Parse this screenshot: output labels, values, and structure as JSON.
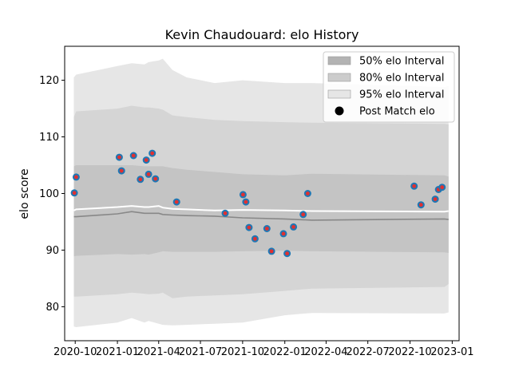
{
  "chart_data": {
    "type": "area",
    "title": "Kevin Chaudouard: elo History",
    "xlabel": "",
    "ylabel": "elo score",
    "xlim": [
      "2020-09-08",
      "2023-01-16"
    ],
    "ylim": [
      74.0,
      126.0
    ],
    "x_ticks": [
      "2020-10",
      "2021-01",
      "2021-04",
      "2021-07",
      "2021-10",
      "2022-01",
      "2022-04",
      "2022-07",
      "2022-10",
      "2023-01"
    ],
    "y_ticks": [
      80,
      90,
      100,
      110,
      120
    ],
    "grid": false,
    "legend_position": "top-right",
    "legend": [
      {
        "label": "50% elo Interval",
        "kind": "patch",
        "color": "#b3b3b3"
      },
      {
        "label": "80% elo Interval",
        "kind": "patch",
        "color": "#cccccc"
      },
      {
        "label": "95% elo Interval",
        "kind": "patch",
        "color": "#e6e6e6"
      },
      {
        "label": "Post Match elo",
        "kind": "marker",
        "color": "#000000"
      }
    ],
    "band_dates": [
      "2020-09-28",
      "2020-10-03",
      "2021-01-01",
      "2021-02-01",
      "2021-03-01",
      "2021-03-10",
      "2021-04-01",
      "2021-04-10",
      "2021-05-01",
      "2021-06-01",
      "2021-08-01",
      "2021-10-01",
      "2022-01-01",
      "2022-03-01",
      "2022-12-15",
      "2022-12-24"
    ],
    "mean_line": [
      95.9,
      95.9,
      96.4,
      96.8,
      96.5,
      96.5,
      96.5,
      96.3,
      96.2,
      96.1,
      96.0,
      95.7,
      95.5,
      95.3,
      95.5,
      95.4
    ],
    "upper_line": [
      97.0,
      97.2,
      97.6,
      97.8,
      97.6,
      97.6,
      97.8,
      97.5,
      97.3,
      97.2,
      97.0,
      97.1,
      97.0,
      96.9,
      96.8,
      96.9
    ],
    "bands": [
      {
        "name": "95% elo Interval",
        "color": "#e6e6e6",
        "upper": [
          120.5,
          121.0,
          122.5,
          123.0,
          122.8,
          123.2,
          123.5,
          123.8,
          121.8,
          120.5,
          119.5,
          120.0,
          119.5,
          119.5,
          118.8,
          119.0
        ],
        "lower": [
          76.5,
          76.4,
          77.2,
          78.0,
          77.2,
          77.5,
          77.0,
          76.8,
          76.7,
          76.8,
          77.0,
          77.2,
          78.5,
          78.9,
          78.8,
          79.0
        ]
      },
      {
        "name": "80% elo Interval",
        "color": "#d5d5d5",
        "upper": [
          113.5,
          114.5,
          115.0,
          115.5,
          115.2,
          115.2,
          115.0,
          114.8,
          113.8,
          113.5,
          113.0,
          112.8,
          112.6,
          112.5,
          112.3,
          112.2
        ],
        "lower": [
          81.8,
          81.8,
          82.2,
          82.5,
          82.3,
          82.2,
          82.3,
          82.5,
          81.5,
          81.8,
          82.0,
          82.2,
          82.8,
          83.2,
          83.5,
          84.0
        ]
      },
      {
        "name": "50% elo Interval",
        "color": "#c4c4c4",
        "upper": [
          104.8,
          105.0,
          105.0,
          105.0,
          104.8,
          104.8,
          104.8,
          104.8,
          104.5,
          104.2,
          103.8,
          103.4,
          103.2,
          103.5,
          103.2,
          103.0
        ],
        "lower": [
          88.9,
          89.0,
          89.3,
          89.2,
          89.3,
          89.2,
          89.6,
          89.8,
          89.7,
          89.7,
          89.7,
          89.8,
          89.9,
          89.8,
          89.6,
          89.5
        ]
      }
    ],
    "series": [
      {
        "name": "Post Match elo",
        "marker_color": "#1f77b4",
        "dot_color": "#e03030",
        "x": [
          "2020-09-29",
          "2020-10-03",
          "2021-01-05",
          "2021-01-10",
          "2021-02-05",
          "2021-02-20",
          "2021-03-05",
          "2021-03-10",
          "2021-03-18",
          "2021-03-25",
          "2021-05-10",
          "2021-08-24",
          "2021-10-02",
          "2021-10-08",
          "2021-10-15",
          "2021-10-28",
          "2021-11-23",
          "2021-12-03",
          "2021-12-29",
          "2022-01-06",
          "2022-01-20",
          "2022-02-10",
          "2022-02-20",
          "2022-10-10",
          "2022-10-25",
          "2022-11-25",
          "2022-12-02",
          "2022-12-10"
        ],
        "y": [
          100.1,
          102.9,
          106.4,
          104.0,
          106.7,
          102.5,
          105.9,
          103.4,
          107.1,
          102.6,
          98.5,
          96.5,
          99.8,
          98.5,
          94.0,
          92.0,
          93.8,
          89.8,
          92.9,
          89.4,
          94.1,
          96.3,
          100.0,
          101.3,
          98.0,
          99.0,
          100.7,
          101.1
        ]
      }
    ]
  }
}
